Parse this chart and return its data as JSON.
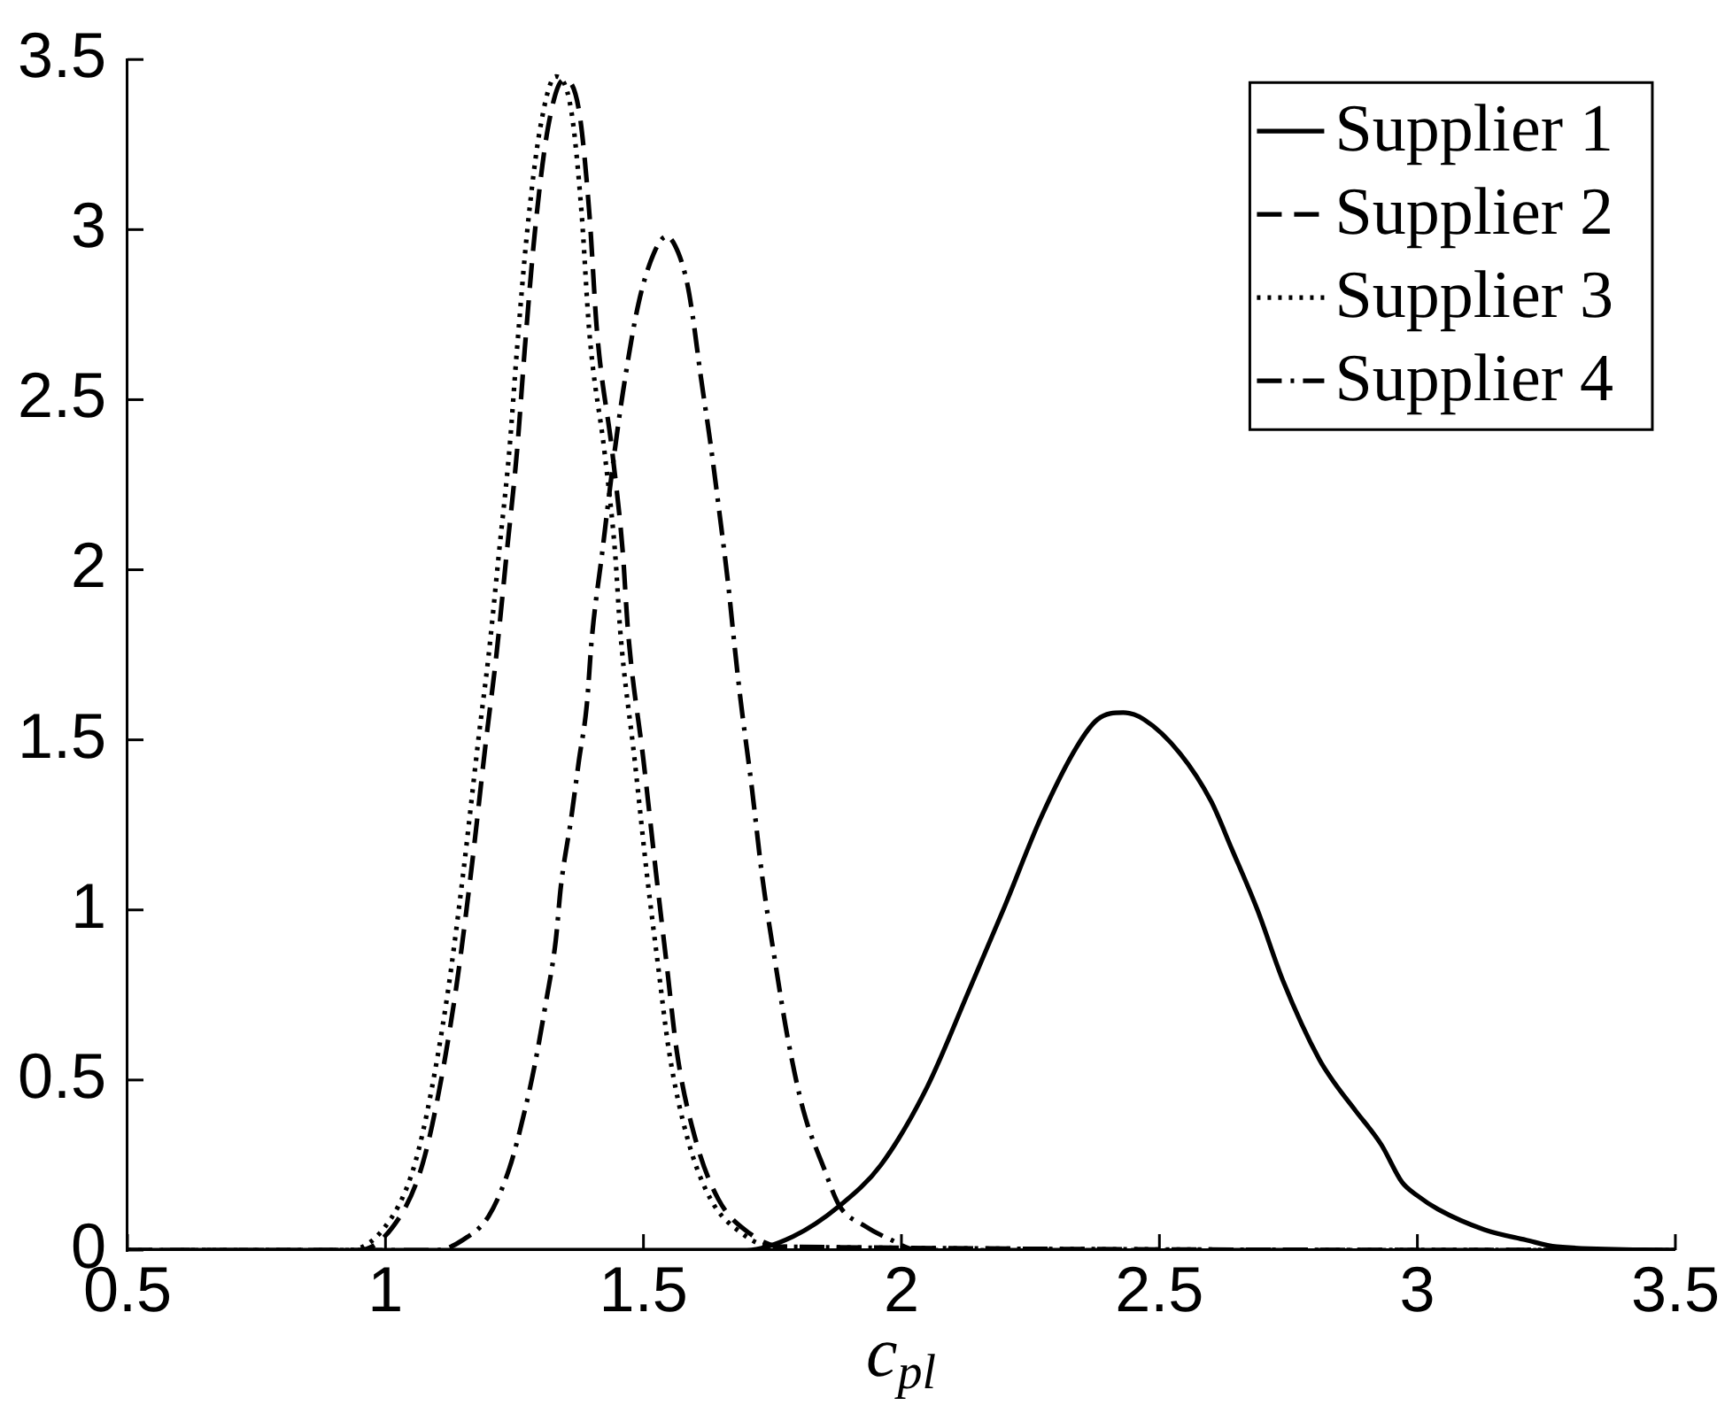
{
  "chart_data": {
    "type": "line",
    "xlabel": "c$_{pl}$",
    "xlim": [
      0.5,
      3.5
    ],
    "xticks": [
      0.5,
      1,
      1.5,
      2,
      2.5,
      3,
      3.5
    ],
    "ylim": [
      0,
      3.5
    ],
    "yticks": [
      0,
      0.5,
      1,
      1.5,
      2,
      2.5,
      3,
      3.5
    ],
    "legend": "top right",
    "marker": "none",
    "series": [
      {
        "name": "Supplier 1",
        "color": "#000000",
        "line_style": "solid",
        "x": [
          0.5,
          1.7,
          1.79,
          1.88,
          1.96,
          2.05,
          2.13,
          2.2,
          2.27,
          2.34,
          2.38,
          2.43,
          2.47,
          2.54,
          2.6,
          2.64,
          2.69,
          2.74,
          2.81,
          2.84,
          2.88,
          2.93,
          2.97,
          3.0,
          3.04,
          3.13,
          3.21,
          3.27,
          3.5
        ],
        "values": [
          0,
          0,
          0.04,
          0.13,
          0.25,
          0.48,
          0.76,
          1.01,
          1.27,
          1.48,
          1.56,
          1.58,
          1.56,
          1.46,
          1.32,
          1.18,
          1.0,
          0.79,
          0.56,
          0.49,
          0.41,
          0.31,
          0.2,
          0.16,
          0.12,
          0.06,
          0.03,
          0.01,
          0
        ]
      },
      {
        "name": "Supplier 2",
        "color": "#000000",
        "line_style": "dashed",
        "x": [
          0.5,
          0.95,
          1.015,
          1.065,
          1.095,
          1.135,
          1.165,
          1.195,
          1.215,
          1.235,
          1.255,
          1.27,
          1.29,
          1.315,
          1.345,
          1.375,
          1.395,
          1.41,
          1.44,
          1.46,
          1.47,
          1.5,
          1.525,
          1.545,
          1.565,
          1.6,
          1.645,
          1.705,
          1.77,
          3.5
        ],
        "values": [
          0,
          0,
          0.07,
          0.22,
          0.4,
          0.75,
          1.1,
          1.5,
          1.75,
          2.05,
          2.35,
          2.65,
          3.0,
          3.3,
          3.44,
          3.35,
          3.05,
          2.7,
          2.34,
          2.05,
          1.82,
          1.44,
          1.1,
          0.84,
          0.58,
          0.33,
          0.15,
          0.05,
          0.01,
          0
        ]
      },
      {
        "name": "Supplier 3",
        "color": "#000000",
        "line_style": "dotted",
        "x": [
          0.5,
          0.93,
          1.0,
          1.05,
          1.08,
          1.12,
          1.15,
          1.18,
          1.2,
          1.22,
          1.24,
          1.255,
          1.275,
          1.3,
          1.33,
          1.36,
          1.38,
          1.395,
          1.425,
          1.445,
          1.455,
          1.483,
          1.507,
          1.528,
          1.55,
          1.585,
          1.63,
          1.69,
          1.75,
          3.5
        ],
        "values": [
          0,
          0,
          0.07,
          0.22,
          0.4,
          0.75,
          1.1,
          1.5,
          1.75,
          2.05,
          2.35,
          2.65,
          3.0,
          3.3,
          3.45,
          3.35,
          3.05,
          2.7,
          2.34,
          2.05,
          1.82,
          1.44,
          1.1,
          0.84,
          0.58,
          0.33,
          0.15,
          0.05,
          0.01,
          0
        ]
      },
      {
        "name": "Supplier 4",
        "color": "#000000",
        "line_style": "dashdot",
        "x": [
          0.5,
          1.1,
          1.15,
          1.2,
          1.24,
          1.27,
          1.29,
          1.31,
          1.33,
          1.34,
          1.36,
          1.375,
          1.39,
          1.4,
          1.42,
          1.44,
          1.46,
          1.49,
          1.52,
          1.545,
          1.568,
          1.585,
          1.596,
          1.61,
          1.63,
          1.647,
          1.664,
          1.677,
          1.688,
          1.71,
          1.73,
          1.756,
          1.78,
          1.81,
          1.85,
          1.88,
          1.93,
          1.98,
          2.03,
          3.5
        ],
        "values": [
          0,
          0,
          0.03,
          0.1,
          0.24,
          0.41,
          0.55,
          0.72,
          0.91,
          1.07,
          1.27,
          1.44,
          1.6,
          1.8,
          2.05,
          2.3,
          2.52,
          2.78,
          2.93,
          2.98,
          2.93,
          2.84,
          2.74,
          2.58,
          2.37,
          2.17,
          1.96,
          1.77,
          1.62,
          1.36,
          1.1,
          0.84,
          0.62,
          0.41,
          0.24,
          0.13,
          0.07,
          0.03,
          0,
          0
        ]
      }
    ]
  }
}
